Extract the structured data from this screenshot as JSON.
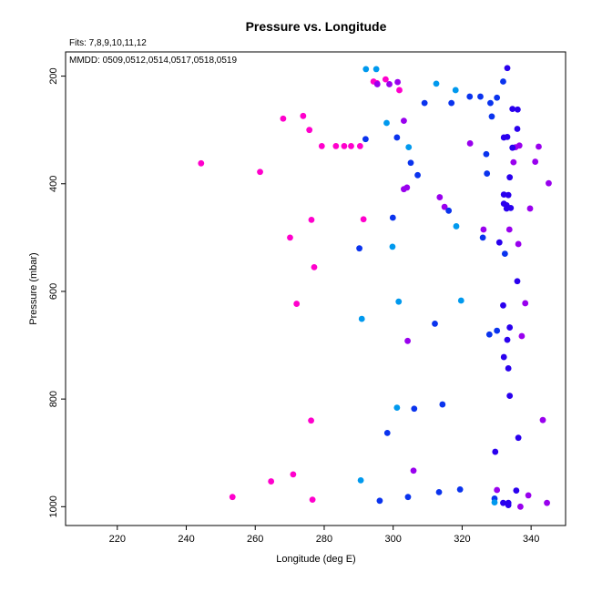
{
  "chart_data": {
    "type": "scatter",
    "title": "Pressure vs. Longitude",
    "subtitle": "Fits: 7,8,9,10,11,12",
    "annotation": "MMDD: 0509,0512,0514,0517,0518,0519",
    "xlabel": "Longitude (deg E)",
    "ylabel": "Pressure (mbar)",
    "xlim": [
      205,
      350
    ],
    "ylim": [
      1035,
      155
    ],
    "y_inverted": true,
    "x_ticks": [
      220,
      240,
      260,
      280,
      300,
      320,
      340
    ],
    "y_ticks": [
      200,
      400,
      600,
      800,
      1000
    ],
    "grid": false,
    "legend": "none",
    "series": [
      {
        "color": "#ff00cc",
        "points": [
          [
            244.3,
            362
          ],
          [
            261.4,
            378
          ],
          [
            268.1,
            279
          ],
          [
            273.9,
            274
          ],
          [
            275.7,
            300
          ],
          [
            279.3,
            330
          ],
          [
            283.4,
            330
          ],
          [
            285.8,
            330
          ],
          [
            287.8,
            330
          ],
          [
            290.4,
            330
          ],
          [
            276.3,
            467
          ],
          [
            291.4,
            466
          ],
          [
            270.1,
            500
          ],
          [
            277.1,
            555
          ],
          [
            272.0,
            623
          ],
          [
            276.2,
            840
          ],
          [
            271.0,
            940
          ],
          [
            264.6,
            953
          ],
          [
            253.4,
            982
          ],
          [
            276.6,
            987
          ],
          [
            294.3,
            210
          ],
          [
            295.3,
            213
          ],
          [
            297.8,
            206
          ],
          [
            301.8,
            226
          ]
        ]
      },
      {
        "color": "#9900ee",
        "points": [
          [
            295.4,
            215
          ],
          [
            298.9,
            215
          ],
          [
            301.3,
            211
          ],
          [
            303.1,
            283
          ],
          [
            303.1,
            410
          ],
          [
            304.0,
            407
          ],
          [
            313.5,
            425
          ],
          [
            314.9,
            443
          ],
          [
            322.3,
            325
          ],
          [
            326.2,
            485
          ],
          [
            333.7,
            485
          ],
          [
            335.5,
            332
          ],
          [
            336.6,
            329
          ],
          [
            334.9,
            360
          ],
          [
            336.3,
            512
          ],
          [
            341.2,
            359
          ],
          [
            342.2,
            331
          ],
          [
            339.7,
            446
          ],
          [
            345.1,
            399
          ],
          [
            338.3,
            622
          ],
          [
            304.2,
            692
          ],
          [
            337.3,
            683
          ],
          [
            343.4,
            839
          ],
          [
            305.9,
            933
          ],
          [
            330.1,
            969
          ],
          [
            339.2,
            979
          ],
          [
            344.6,
            993
          ],
          [
            336.9,
            1000
          ]
        ]
      },
      {
        "color": "#2a00ee",
        "points": [
          [
            333.1,
            185
          ],
          [
            334.6,
            261
          ],
          [
            336.1,
            262
          ],
          [
            336.0,
            298
          ],
          [
            332.1,
            314
          ],
          [
            333.1,
            313
          ],
          [
            334.6,
            333
          ],
          [
            333.8,
            388
          ],
          [
            332.1,
            420
          ],
          [
            333.4,
            421
          ],
          [
            332.1,
            437
          ],
          [
            332.9,
            440
          ],
          [
            334.1,
            445
          ],
          [
            332.9,
            446
          ],
          [
            330.8,
            509
          ],
          [
            336.0,
            581
          ],
          [
            331.9,
            626
          ],
          [
            333.8,
            667
          ],
          [
            333.1,
            690
          ],
          [
            332.1,
            722
          ],
          [
            333.4,
            743
          ],
          [
            333.8,
            794
          ],
          [
            336.3,
            872
          ],
          [
            329.6,
            898
          ],
          [
            335.7,
            970
          ],
          [
            331.9,
            993
          ],
          [
            333.4,
            993
          ],
          [
            333.4,
            997
          ]
        ]
      },
      {
        "color": "#0a33ee",
        "points": [
          [
            292.0,
            317
          ],
          [
            301.1,
            314
          ],
          [
            305.1,
            361
          ],
          [
            307.1,
            384
          ],
          [
            309.1,
            250
          ],
          [
            316.9,
            250
          ],
          [
            322.2,
            238
          ],
          [
            325.3,
            238
          ],
          [
            328.2,
            250
          ],
          [
            330.1,
            240
          ],
          [
            331.9,
            210
          ],
          [
            328.6,
            275
          ],
          [
            327.0,
            345
          ],
          [
            327.2,
            381
          ],
          [
            316.1,
            450
          ],
          [
            299.9,
            463
          ],
          [
            326.0,
            500
          ],
          [
            332.4,
            530
          ],
          [
            290.2,
            520
          ],
          [
            312.1,
            660
          ],
          [
            330.1,
            673
          ],
          [
            327.9,
            680
          ],
          [
            314.3,
            810
          ],
          [
            306.1,
            818
          ],
          [
            298.3,
            863
          ],
          [
            304.3,
            982
          ],
          [
            313.3,
            973
          ],
          [
            319.4,
            968
          ],
          [
            296.1,
            989
          ],
          [
            329.4,
            985
          ]
        ]
      },
      {
        "color": "#0099ee",
        "points": [
          [
            292.1,
            187
          ],
          [
            295.1,
            187
          ],
          [
            312.5,
            214
          ],
          [
            318.1,
            226
          ],
          [
            298.1,
            287
          ],
          [
            304.5,
            332
          ],
          [
            318.3,
            479
          ],
          [
            299.8,
            517
          ],
          [
            301.6,
            619
          ],
          [
            319.7,
            617
          ],
          [
            290.9,
            651
          ],
          [
            301.1,
            816
          ],
          [
            290.6,
            951
          ],
          [
            329.4,
            992
          ]
        ]
      }
    ]
  }
}
